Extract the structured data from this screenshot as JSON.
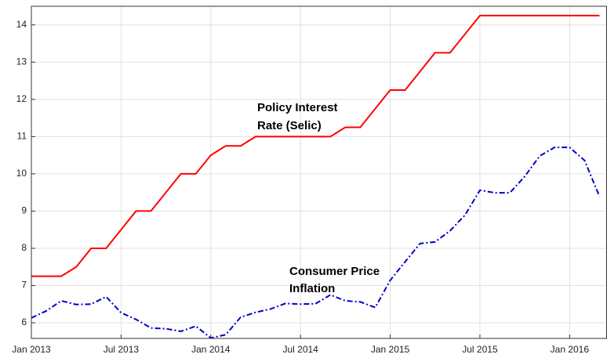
{
  "chart_data": {
    "type": "line",
    "annotations": [
      [
        "Policy Interest",
        "Rate (Selic)"
      ],
      [
        "Consumer Price",
        "Inflation"
      ]
    ],
    "x": [
      "2013-01",
      "2013-02",
      "2013-03",
      "2013-04",
      "2013-05",
      "2013-06",
      "2013-07",
      "2013-08",
      "2013-09",
      "2013-10",
      "2013-11",
      "2013-12",
      "2014-01",
      "2014-02",
      "2014-03",
      "2014-04",
      "2014-05",
      "2014-06",
      "2014-07",
      "2014-08",
      "2014-09",
      "2014-10",
      "2014-11",
      "2014-12",
      "2015-01",
      "2015-02",
      "2015-03",
      "2015-04",
      "2015-05",
      "2015-06",
      "2015-07",
      "2015-08",
      "2015-09",
      "2015-10",
      "2015-11",
      "2015-12",
      "2016-01",
      "2016-02",
      "2016-03"
    ],
    "series": [
      {
        "color": "#ff0000",
        "style": "solid",
        "values": [
          7.25,
          7.25,
          7.25,
          7.5,
          8,
          8,
          8.5,
          9,
          9,
          9.5,
          10,
          10,
          10.5,
          10.75,
          10.75,
          11,
          11,
          11,
          11,
          11,
          11,
          11.25,
          11.25,
          11.75,
          12.25,
          12.25,
          12.75,
          13.25,
          13.25,
          13.75,
          14.25,
          14.25,
          14.25,
          14.25,
          14.25,
          14.25,
          14.25,
          14.25,
          14.25
        ]
      },
      {
        "color": "#0000cc",
        "style": "dashdot",
        "values": [
          6.13,
          6.32,
          6.59,
          6.49,
          6.5,
          6.7,
          6.27,
          6.09,
          5.86,
          5.84,
          5.77,
          5.91,
          5.59,
          5.68,
          6.15,
          6.28,
          6.37,
          6.52,
          6.5,
          6.51,
          6.75,
          6.59,
          6.56,
          6.41,
          7.14,
          7.64,
          8.13,
          8.17,
          8.47,
          8.89,
          9.56,
          9.49,
          9.49,
          9.93,
          10.48,
          10.71,
          10.71,
          10.36,
          9.39
        ]
      }
    ],
    "xlim": [
      "2013-01",
      "2016-03"
    ],
    "xticks": [
      {
        "value": "2013-01",
        "label": "Jan 2013"
      },
      {
        "value": "2013-07",
        "label": "Jul 2013"
      },
      {
        "value": "2014-01",
        "label": "Jan 2014"
      },
      {
        "value": "2014-07",
        "label": "Jul 2014"
      },
      {
        "value": "2015-01",
        "label": "Jan 2015"
      },
      {
        "value": "2015-07",
        "label": "Jul 2015"
      },
      {
        "value": "2016-01",
        "label": "Jan 2016"
      }
    ],
    "ylim": [
      5.58,
      14.5
    ],
    "yticks": [
      6,
      7,
      8,
      9,
      10,
      11,
      12,
      13,
      14
    ],
    "grid": true
  }
}
